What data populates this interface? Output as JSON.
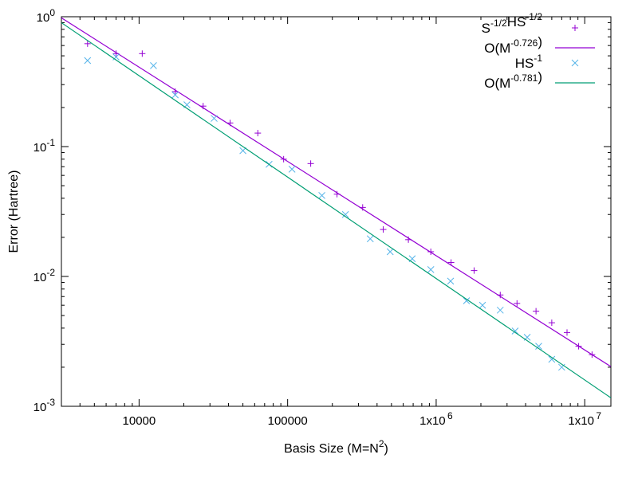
{
  "chart_data": {
    "type": "scatter",
    "title": "",
    "xlabel": {
      "base": "Basis Size (M=N",
      "sup": "2",
      "tail": ")"
    },
    "ylabel": "Error (Hartree)",
    "x_scale": "log",
    "y_scale": "log",
    "xlim": [
      3000,
      15000000
    ],
    "ylim": [
      0.001,
      1
    ],
    "grid": false,
    "legend_position": "top-right",
    "x_ticks": [
      {
        "value": 10000,
        "mantissa": "10000",
        "exp": ""
      },
      {
        "value": 100000,
        "mantissa": "100000",
        "exp": ""
      },
      {
        "value": 1000000,
        "mantissa": "1x10",
        "exp": "6"
      },
      {
        "value": 10000000,
        "mantissa": "1x10",
        "exp": "7"
      }
    ],
    "y_ticks": [
      {
        "value": 1,
        "mantissa": "10",
        "exp": "0"
      },
      {
        "value": 0.1,
        "mantissa": "10",
        "exp": "-1"
      },
      {
        "value": 0.01,
        "mantissa": "10",
        "exp": "-2"
      },
      {
        "value": 0.001,
        "mantissa": "10",
        "exp": "-3"
      }
    ],
    "series": [
      {
        "legend": {
          "parts": [
            [
              "S",
              "-1/2"
            ],
            [
              "HS",
              "-1/2"
            ]
          ]
        },
        "kind": "points",
        "marker": "plus",
        "color": "#9400d3",
        "points": [
          [
            4500,
            0.62
          ],
          [
            7000,
            0.52
          ],
          [
            10500,
            0.52
          ],
          [
            17500,
            0.265
          ],
          [
            27000,
            0.205
          ],
          [
            41000,
            0.152
          ],
          [
            63000,
            0.127
          ],
          [
            94000,
            0.08
          ],
          [
            143000,
            0.074
          ],
          [
            215000,
            0.043
          ],
          [
            320000,
            0.034
          ],
          [
            440000,
            0.023
          ],
          [
            650000,
            0.0192
          ],
          [
            920000,
            0.0155
          ],
          [
            1260000,
            0.0128
          ],
          [
            1800000,
            0.0111
          ],
          [
            2700000,
            0.0072
          ],
          [
            3500000,
            0.0062
          ],
          [
            4700000,
            0.0054
          ],
          [
            6000000,
            0.0044
          ],
          [
            7600000,
            0.0037
          ],
          [
            9100000,
            0.0029
          ],
          [
            11200000,
            0.0025
          ]
        ]
      },
      {
        "legend": {
          "parts": [
            [
              "O(M",
              "-0.726"
            ],
            [
              ")",
              ""
            ]
          ]
        },
        "kind": "line",
        "color": "#9400d3",
        "line": {
          "x0": 3000,
          "y0": 0.98,
          "slope": -0.726
        }
      },
      {
        "legend": {
          "parts": [
            [
              "HS",
              "-1"
            ]
          ]
        },
        "kind": "points",
        "marker": "cross",
        "color": "#56b4e9",
        "points": [
          [
            4500,
            0.46
          ],
          [
            7000,
            0.49
          ],
          [
            12500,
            0.42
          ],
          [
            17500,
            0.25
          ],
          [
            21000,
            0.21
          ],
          [
            32000,
            0.165
          ],
          [
            50000,
            0.093
          ],
          [
            75000,
            0.073
          ],
          [
            107000,
            0.067
          ],
          [
            170000,
            0.042
          ],
          [
            245000,
            0.03
          ],
          [
            360000,
            0.0195
          ],
          [
            490000,
            0.0155
          ],
          [
            690000,
            0.0137
          ],
          [
            920000,
            0.0113
          ],
          [
            1250000,
            0.0092
          ],
          [
            1600000,
            0.0065
          ],
          [
            2050000,
            0.006
          ],
          [
            2700000,
            0.0055
          ],
          [
            3400000,
            0.0038
          ],
          [
            4100000,
            0.0034
          ],
          [
            4900000,
            0.0029
          ],
          [
            6000000,
            0.0023
          ],
          [
            7000000,
            0.002
          ]
        ]
      },
      {
        "legend": {
          "parts": [
            [
              "O(M",
              "-0.781"
            ],
            [
              ")",
              ""
            ]
          ]
        },
        "kind": "line",
        "color": "#009e73",
        "line": {
          "x0": 3000,
          "y0": 0.9,
          "slope": -0.781
        }
      }
    ]
  }
}
